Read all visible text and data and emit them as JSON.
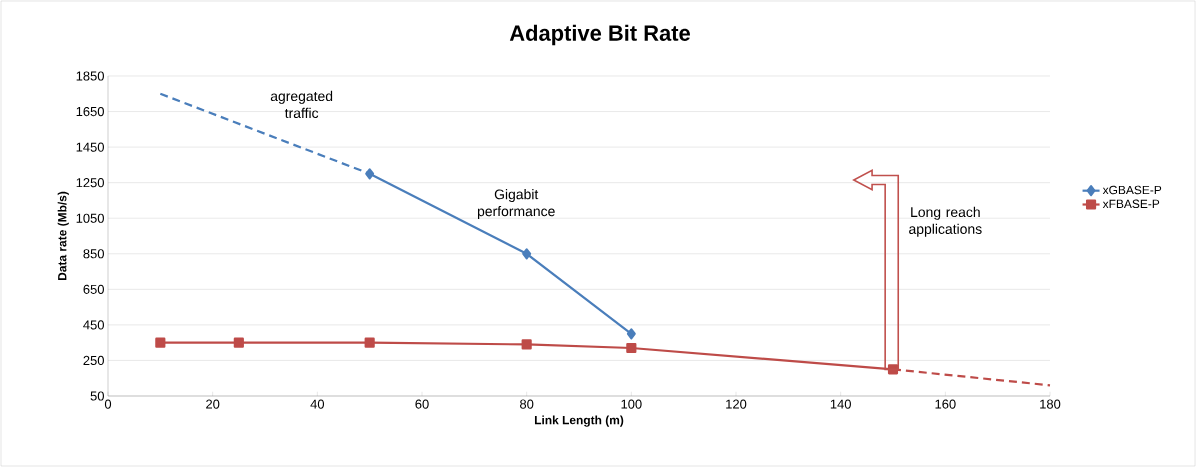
{
  "chart_data": {
    "type": "line",
    "title": "Adaptive Bit Rate",
    "xlabel": "Link Length (m)",
    "ylabel": "Data rate (Mb/s)",
    "series": [
      {
        "name": "xGBASE-P",
        "color": "#4a7ebb",
        "marker": "diamond",
        "line_style": "solid",
        "x": [
          50,
          80,
          100
        ],
        "values": [
          1300,
          850,
          400
        ]
      },
      {
        "name": "xFBASE-P",
        "color": "#be4b48",
        "marker": "square",
        "line_style": "solid",
        "x": [
          10,
          25,
          50,
          80,
          100,
          150
        ],
        "values": [
          350,
          350,
          350,
          340,
          320,
          200
        ]
      },
      {
        "color": "#4a7ebb",
        "marker": "none",
        "line_style": "dashed",
        "x": [
          10,
          50
        ],
        "values": [
          1750,
          1300
        ]
      },
      {
        "color": "#be4b48",
        "marker": "none",
        "line_style": "dashed",
        "x": [
          150,
          180
        ],
        "values": [
          200,
          110
        ]
      }
    ],
    "xlim": [
      0,
      180
    ],
    "xticks": [
      0,
      20,
      40,
      60,
      80,
      100,
      120,
      140,
      160,
      180
    ],
    "ylim": [
      50,
      1850
    ],
    "yticks": [
      50,
      250,
      450,
      650,
      850,
      1050,
      1250,
      1450,
      1650,
      1850
    ],
    "grid": "y",
    "legend": "right",
    "annotations": [
      "agregated traffic",
      "Gigabit performance",
      "Long reach applications"
    ]
  }
}
